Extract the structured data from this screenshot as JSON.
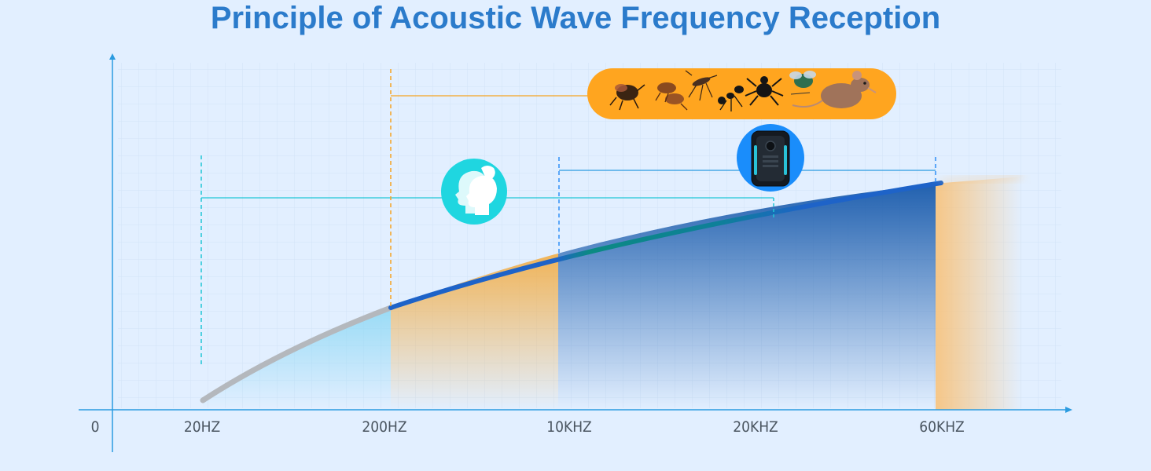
{
  "title": "Principle of Acoustic Wave Frequency Reception",
  "chart_data": {
    "type": "area",
    "origin_label": "0",
    "categories": [
      "20HZ",
      "200HZ",
      "10KHZ",
      "20KHZ",
      "60KHZ"
    ],
    "ranges": [
      {
        "id": "human-hearing",
        "from": "20HZ",
        "to": "20KHZ",
        "icon": "human-heads-icon",
        "color": "#1fd6e0"
      },
      {
        "id": "pest-hearing",
        "from": "200HZ",
        "to": "60KHZ",
        "icon": "pests-icon",
        "color": "#ffa51f"
      },
      {
        "id": "device-emission",
        "from": "10KHZ",
        "to": "60KHZ",
        "icon": "repeller-device-icon",
        "color": "#2f8ff7"
      }
    ],
    "pests": [
      "beetle-icon",
      "flea-icon",
      "mosquito-icon",
      "ant-icon",
      "spider-icon",
      "fly-icon",
      "mouse-icon"
    ],
    "colors": {
      "axis": "#2b9be0",
      "curve_low": "#b4b8bd",
      "curve_mid": "#1e63c8",
      "curve_high": "#0b8a82",
      "area_low": "#9fdff5",
      "area_mid": "#f6b85a",
      "area_high": "#2f6fb8"
    }
  }
}
